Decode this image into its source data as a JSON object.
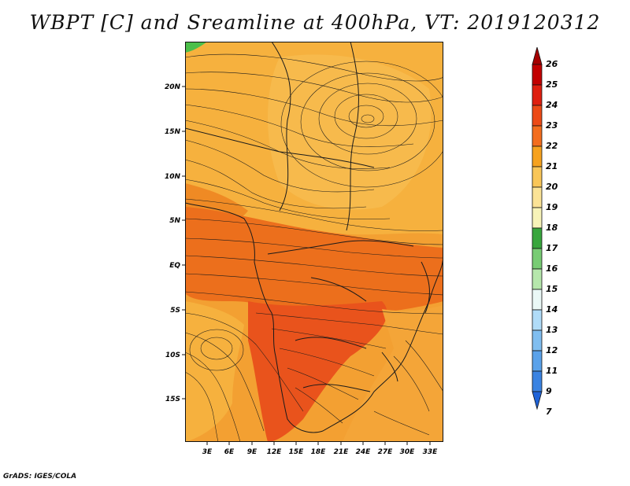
{
  "title": "WBPT [C] and Sreamline at 400hPa, VT: 2019120312",
  "credit": "GrADS: IGES/COLA",
  "map": {
    "lat_labels": [
      "20N",
      "15N",
      "10N",
      "5N",
      "EQ",
      "5S",
      "10S",
      "15S"
    ],
    "lon_labels": [
      "3E",
      "6E",
      "9E",
      "12E",
      "15E",
      "18E",
      "21E",
      "24E",
      "27E",
      "30E",
      "33E"
    ],
    "colors": {
      "orange_light": "#f6b13e",
      "orange": "#f39a2a",
      "orange_dark": "#ee7a1d",
      "red_orange": "#e9531c",
      "green": "#4cbf4a"
    }
  },
  "colorbar": {
    "labels": [
      "26",
      "25",
      "24",
      "23",
      "22",
      "21",
      "20",
      "19",
      "18",
      "17",
      "16",
      "15",
      "14",
      "13",
      "12",
      "11",
      "9",
      "7"
    ],
    "colors": [
      "#a50000",
      "#c20000",
      "#df1f0f",
      "#ec4a16",
      "#f36d1e",
      "#f6a21f",
      "#f9c658",
      "#fbe396",
      "#f7f3b8",
      "#38a63d",
      "#78cc74",
      "#b6e7ac",
      "#eaf8f6",
      "#b0dcf8",
      "#80bef0",
      "#5aa2ea",
      "#3a83e2",
      "#1f63d8"
    ]
  }
}
